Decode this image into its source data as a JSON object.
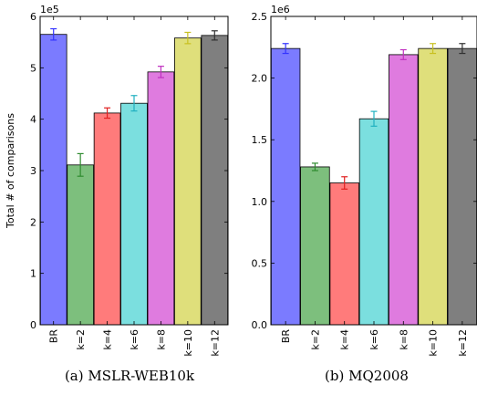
{
  "chart_data": [
    {
      "type": "bar",
      "categories": [
        "BR",
        "k=2",
        "k=4",
        "k=6",
        "k=8",
        "k=10",
        "k=12"
      ],
      "values": [
        5.65,
        3.11,
        4.12,
        4.31,
        4.92,
        5.58,
        5.63
      ],
      "errors": [
        0.11,
        0.22,
        0.1,
        0.15,
        0.11,
        0.11,
        0.09
      ],
      "colors": [
        "#7b7bff",
        "#7dbf7d",
        "#ff7b7b",
        "#7bdfdf",
        "#df7bdf",
        "#dfdf7b",
        "#7f7f7f"
      ],
      "error_colors": [
        "#3333ff",
        "#2e8b2e",
        "#e02020",
        "#20b0c0",
        "#c030c0",
        "#c8c020",
        "#303030"
      ],
      "ylim": [
        0,
        6
      ],
      "yticks": [
        0,
        1,
        2,
        3,
        4,
        5,
        6
      ],
      "ytick_labels": [
        "0",
        "1",
        "2",
        "3",
        "4",
        "5",
        "6"
      ],
      "multiplier": "1e5",
      "ylabel": "Total # of comparisons",
      "caption": "(a) MSLR-WEB10k"
    },
    {
      "type": "bar",
      "categories": [
        "BR",
        "k=2",
        "k=4",
        "k=6",
        "k=8",
        "k=10",
        "k=12"
      ],
      "values": [
        2.24,
        1.28,
        1.15,
        1.67,
        2.19,
        2.24,
        2.24
      ],
      "errors": [
        0.04,
        0.03,
        0.05,
        0.06,
        0.04,
        0.04,
        0.04
      ],
      "colors": [
        "#7b7bff",
        "#7dbf7d",
        "#ff7b7b",
        "#7bdfdf",
        "#df7bdf",
        "#dfdf7b",
        "#7f7f7f"
      ],
      "error_colors": [
        "#3333ff",
        "#2e8b2e",
        "#e02020",
        "#20b0c0",
        "#c030c0",
        "#c8c020",
        "#303030"
      ],
      "ylim": [
        0,
        2.5
      ],
      "yticks": [
        0,
        0.5,
        1.0,
        1.5,
        2.0,
        2.5
      ],
      "ytick_labels": [
        "0.0",
        "0.5",
        "1.0",
        "1.5",
        "2.0",
        "2.5"
      ],
      "multiplier": "1e6",
      "ylabel": "",
      "caption": "(b) MQ2008"
    }
  ]
}
